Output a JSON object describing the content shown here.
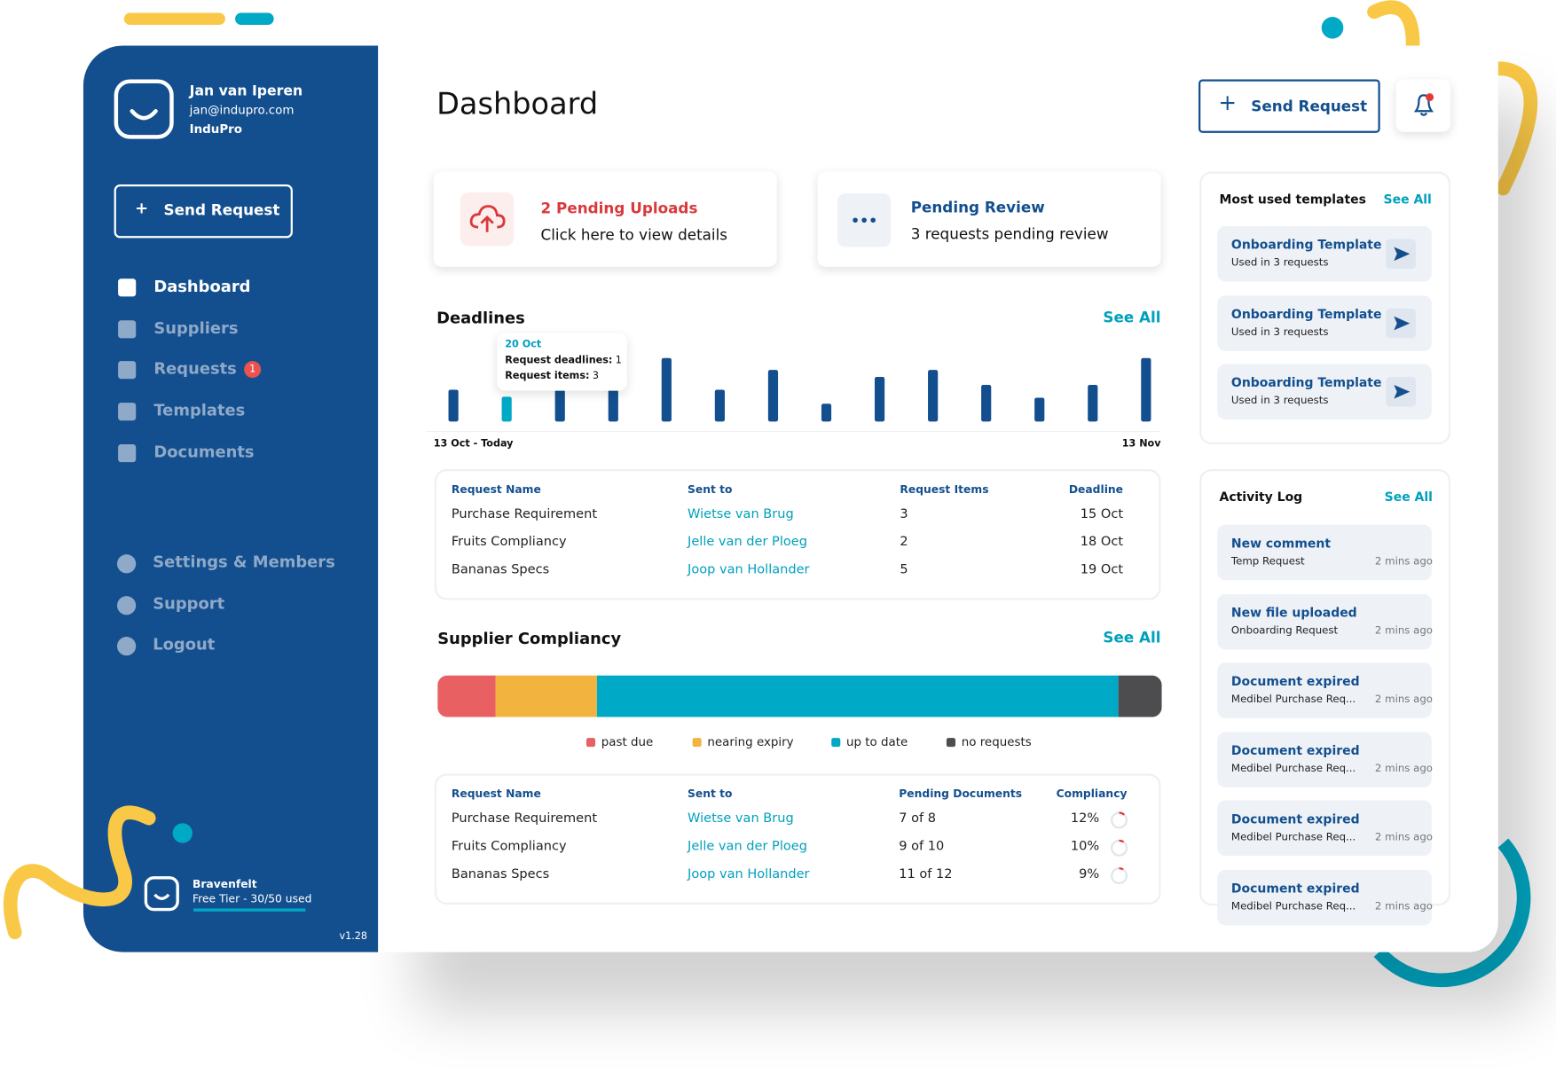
{
  "sidebar": {
    "user": {
      "name": "Jan van Iperen",
      "email": "jan@indupro.com",
      "company": "InduPro"
    },
    "send_request": "Send Request",
    "nav": [
      "Dashboard",
      "Suppliers",
      "Requests",
      "Templates",
      "Documents"
    ],
    "requests_badge": 1,
    "bottom_nav": [
      "Settings & Members",
      "Support",
      "Logout"
    ],
    "workspace": {
      "name": "Bravenfelt",
      "plan": "Free Tier - 30/50 used"
    },
    "version": "v1.28"
  },
  "header": {
    "title": "Dashboard",
    "send_request": "Send Request"
  },
  "cards": [
    {
      "title": "2 Pending Uploads",
      "text": "Click here to view details"
    },
    {
      "title": "Pending Review",
      "text": "3 requests pending review"
    }
  ],
  "deadlines": {
    "title": "Deadlines",
    "see_all": "See All",
    "start_label": "13 Oct - Today",
    "end_label": "13 Nov",
    "values": [
      32,
      25,
      32,
      32,
      64,
      32,
      52,
      18,
      45,
      52,
      37,
      24,
      37,
      64
    ],
    "ymax": 64,
    "highlight": 1,
    "tooltip": {
      "date": "20 Oct",
      "lines": [
        {
          "label": "Request deadlines:",
          "value": 1
        },
        {
          "label": "Request items:",
          "value": 3
        }
      ]
    }
  },
  "deadlines_table": {
    "columns": [
      "Request Name",
      "Sent to",
      "Request Items",
      "Deadline"
    ],
    "rows": [
      [
        "Purchase Requirement",
        "Wietse van Brug",
        3,
        "15 Oct"
      ],
      [
        "Fruits Compliancy",
        "Jelle van der Ploeg",
        2,
        "18 Oct"
      ],
      [
        "Bananas Specs",
        "Joop van Hollander",
        5,
        "19 Oct"
      ]
    ]
  },
  "compliance": {
    "title": "Supplier Compliancy",
    "see_all": "See All",
    "segments": [
      {
        "name": "past due",
        "color": "#e86062",
        "value": 8
      },
      {
        "name": "nearing expiry",
        "color": "#f3b43f",
        "value": 14
      },
      {
        "name": "up to date",
        "color": "#00a9c5",
        "value": 72
      },
      {
        "name": "no requests",
        "color": "#4d4d4f",
        "value": 6
      }
    ],
    "table": {
      "columns": [
        "Request Name",
        "Sent to",
        "Pending Documents",
        "Compliancy"
      ],
      "rows": [
        [
          "Purchase Requirement",
          "Wietse van Brug",
          "7 of 8",
          {
            "value": 12,
            "label": "12%"
          }
        ],
        [
          "Fruits Compliancy",
          "Jelle van der Ploeg",
          "9 of 10",
          {
            "value": 10,
            "label": "10%"
          }
        ],
        [
          "Bananas Specs",
          "Joop van Hollander",
          "11 of 12",
          {
            "value": 9,
            "label": "9%"
          }
        ]
      ]
    }
  },
  "templates": {
    "title": "Most used templates",
    "see_all": "See All",
    "items": [
      {
        "name": "Onboarding Template",
        "usage": "Used in 3 requests"
      },
      {
        "name": "Onboarding Template",
        "usage": "Used in 3 requests"
      },
      {
        "name": "Onboarding Template",
        "usage": "Used in 3 requests"
      }
    ]
  },
  "activity": {
    "title": "Activity Log",
    "see_all": "See All",
    "items": [
      {
        "title": "New comment",
        "subject": "Temp Request",
        "time": "2 mins ago"
      },
      {
        "title": "New file uploaded",
        "subject": "Onboarding Request",
        "time": "2 mins ago"
      },
      {
        "title": "Document expired",
        "subject": "Medibel Purchase Req...",
        "time": "2 mins ago"
      },
      {
        "title": "Document expired",
        "subject": "Medibel Purchase Req...",
        "time": "2 mins ago"
      },
      {
        "title": "Document expired",
        "subject": "Medibel Purchase Req...",
        "time": "2 mins ago"
      },
      {
        "title": "Document expired",
        "subject": "Medibel Purchase Req...",
        "time": "2 mins ago"
      }
    ]
  }
}
